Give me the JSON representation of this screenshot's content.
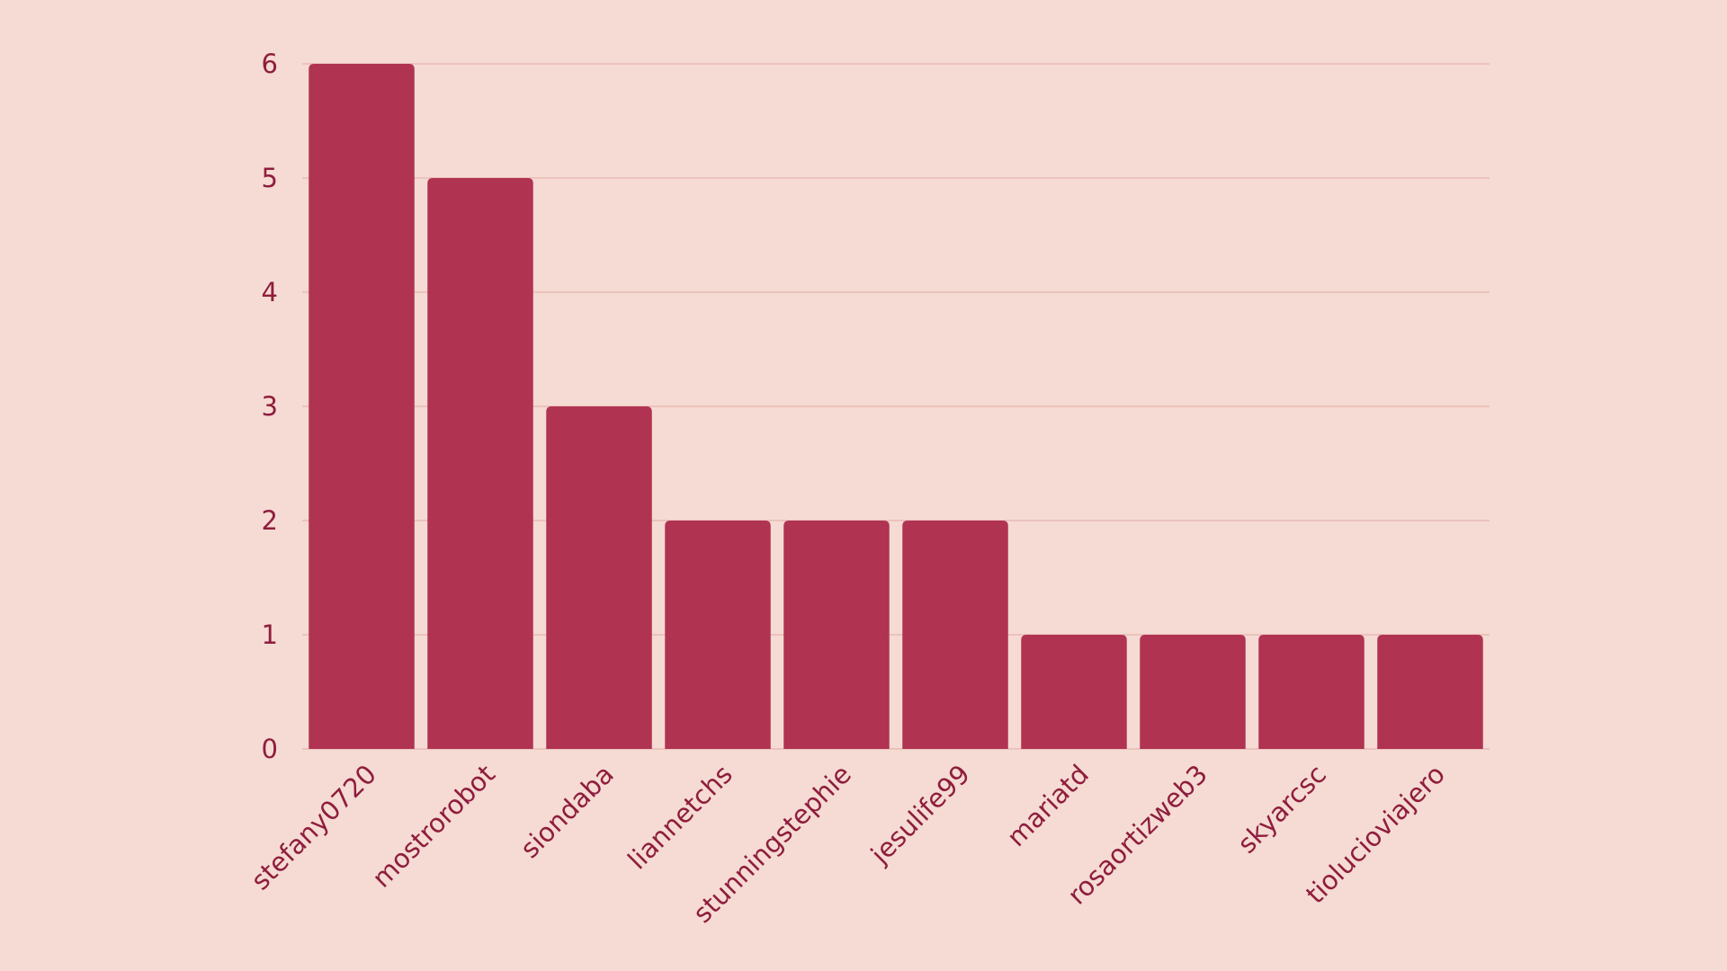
{
  "chart_data": {
    "type": "bar",
    "categories": [
      "stefany0720",
      "mostrorobot",
      "siondaba",
      "liannetchs",
      "stunningstephie",
      "jesulife99",
      "mariatd",
      "rosaortizweb3",
      "skyarcsc",
      "tiolucioviajero"
    ],
    "values": [
      6,
      5,
      3,
      2,
      2,
      2,
      1,
      1,
      1,
      1
    ],
    "color": "#b03352",
    "ylim": [
      0,
      6
    ],
    "yticks": [
      0,
      1,
      2,
      3,
      4,
      5,
      6
    ],
    "grid": true
  }
}
